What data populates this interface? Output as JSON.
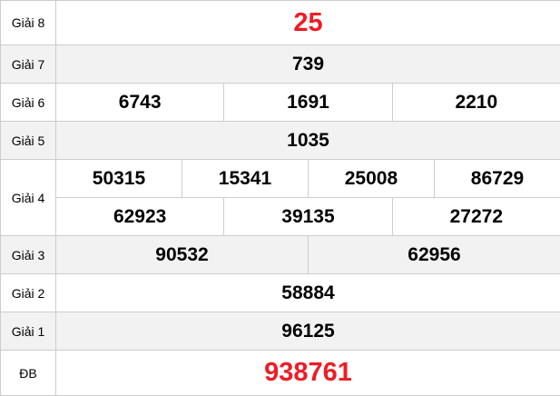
{
  "prizes": {
    "g8": {
      "label": "Giải 8",
      "numbers": [
        "25"
      ]
    },
    "g7": {
      "label": "Giải 7",
      "numbers": [
        "739"
      ]
    },
    "g6": {
      "label": "Giải 6",
      "numbers": [
        "6743",
        "1691",
        "2210"
      ]
    },
    "g5": {
      "label": "Giải 5",
      "numbers": [
        "1035"
      ]
    },
    "g4": {
      "label": "Giải 4",
      "numbers": [
        "50315",
        "15341",
        "25008",
        "86729",
        "62923",
        "39135",
        "27272"
      ]
    },
    "g3": {
      "label": "Giải 3",
      "numbers": [
        "90532",
        "62956"
      ]
    },
    "g2": {
      "label": "Giải 2",
      "numbers": [
        "58884"
      ]
    },
    "g1": {
      "label": "Giải 1",
      "numbers": [
        "96125"
      ]
    },
    "db": {
      "label": "ĐB",
      "numbers": [
        "938761"
      ]
    }
  },
  "colors": {
    "highlight": "#ee1c25",
    "alt_row": "#f2f2f2",
    "border": "#cccccc"
  }
}
